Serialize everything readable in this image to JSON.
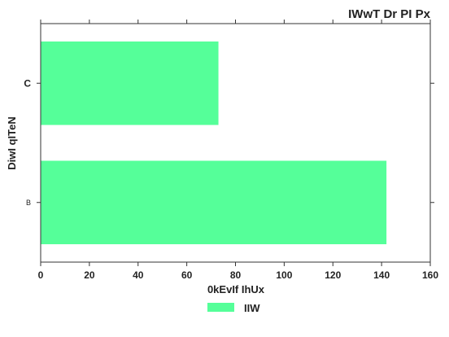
{
  "chart_data": {
    "type": "bar",
    "orientation": "horizontal",
    "title": "IWwT Dr PI  Px",
    "xlabel": "0kEvIf  IhUx",
    "ylabel": "DiwI qITeN",
    "categories": [
      "B",
      "C"
    ],
    "series": [
      {
        "name": "IIW",
        "values": [
          142,
          73
        ],
        "color": "#55ff99"
      }
    ],
    "xlim": [
      0,
      160
    ],
    "xticks": [
      0,
      20,
      40,
      60,
      80,
      100,
      120,
      140,
      160
    ],
    "grid": false,
    "legend_position": "bottom-center"
  }
}
